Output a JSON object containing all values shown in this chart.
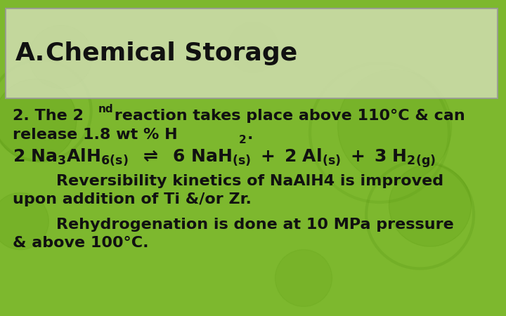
{
  "bg_color": "#7db82e",
  "title_box_color": "#d0ddb0",
  "title_box_edge_color": "#999999",
  "title_text_a": "A.",
  "title_text_rest": "   Chemical Storage",
  "title_fontsize": 26,
  "title_color": "#111111",
  "body_color": "#111111",
  "body_fontsize": 16,
  "equation_fontsize": 18,
  "figsize": [
    7.2,
    4.5
  ],
  "dpi": 100,
  "circles": [
    [
      0.07,
      0.62,
      0.13,
      0.22
    ],
    [
      0.12,
      0.82,
      0.1,
      0.18
    ],
    [
      0.85,
      0.35,
      0.13,
      0.2
    ],
    [
      0.78,
      0.6,
      0.18,
      0.16
    ],
    [
      0.6,
      0.12,
      0.09,
      0.14
    ],
    [
      0.04,
      0.3,
      0.09,
      0.18
    ],
    [
      0.5,
      0.85,
      0.08,
      0.14
    ]
  ]
}
